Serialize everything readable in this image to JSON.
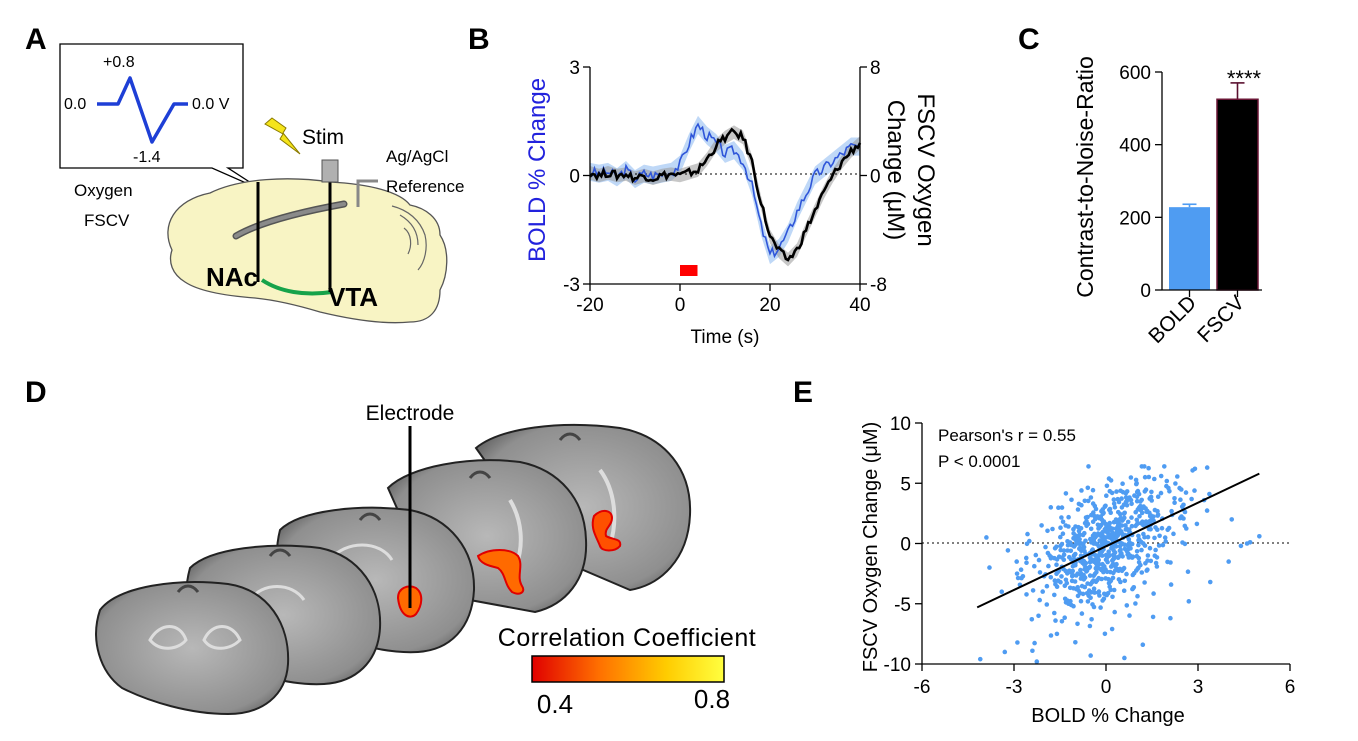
{
  "panel_labels": [
    "A",
    "B",
    "C",
    "D",
    "E"
  ],
  "panelA": {
    "waveform": {
      "peak": "+0.8",
      "start": "0.0",
      "end": "0.0 V",
      "trough": "-1.4"
    },
    "stim": "Stim",
    "reference": [
      "Ag/AgCl",
      "Reference"
    ],
    "probe": [
      "Oxygen",
      "FSCV"
    ],
    "regions": [
      "NAc",
      "VTA"
    ],
    "colors": {
      "brain": "#f8f4c4",
      "pathway": "#16a34a",
      "waveform": "#1e3fd6",
      "bolt": "#f5e41a"
    }
  },
  "chart_data": [
    {
      "panel": "B",
      "type": "line",
      "xlabel": "Time (s)",
      "ylabel_left": "BOLD % Change",
      "ylabel_right": "FSCV Oxygen Change (μM)",
      "xlim": [
        -20,
        40
      ],
      "ylim_left": [
        -3,
        3
      ],
      "ylim_right": [
        -8,
        8
      ],
      "x_ticks": [
        "-20",
        "0",
        "20",
        "40"
      ],
      "y_left_ticks": [
        "3",
        "0",
        "-3"
      ],
      "y_right_ticks": [
        "8",
        "0",
        "-8"
      ],
      "stimulus": {
        "start": 0,
        "end": 3,
        "color": "#ff0000"
      },
      "series": [
        {
          "axis": "left",
          "color": "#2f56d9",
          "band": "#8ab8f0",
          "x": [
            -20,
            -18,
            -16,
            -14,
            -12,
            -10,
            -8,
            -6,
            -4,
            -2,
            0,
            2,
            4,
            6,
            8,
            10,
            12,
            14,
            16,
            18,
            20,
            22,
            24,
            26,
            28,
            30,
            32,
            34,
            36,
            38,
            40
          ],
          "values": [
            0.1,
            0.05,
            0.1,
            -0.05,
            0.15,
            -0.1,
            0.05,
            0.0,
            0.05,
            0.1,
            0.3,
            0.9,
            1.4,
            1.1,
            0.9,
            0.6,
            0.7,
            0.4,
            -0.3,
            -1.4,
            -2.2,
            -2.0,
            -1.6,
            -1.0,
            -0.5,
            0.0,
            0.2,
            0.4,
            0.6,
            0.8,
            0.8
          ]
        },
        {
          "axis": "right",
          "color": "#000000",
          "band": "#999999",
          "x": [
            -20,
            -18,
            -16,
            -14,
            -12,
            -10,
            -8,
            -6,
            -4,
            -2,
            0,
            2,
            4,
            6,
            8,
            10,
            12,
            14,
            16,
            18,
            20,
            22,
            24,
            26,
            28,
            30,
            32,
            34,
            36,
            38,
            40
          ],
          "values": [
            0.2,
            0.0,
            0.2,
            0.0,
            0.1,
            -0.2,
            0.0,
            -0.2,
            0.0,
            0.1,
            0.0,
            0.2,
            0.4,
            1.2,
            2.2,
            2.8,
            3.2,
            2.8,
            1.0,
            -2.0,
            -4.5,
            -5.6,
            -6.2,
            -5.5,
            -4.0,
            -2.6,
            -1.2,
            0.0,
            1.0,
            1.8,
            2.4
          ]
        }
      ]
    },
    {
      "panel": "C",
      "type": "bar",
      "ylabel": "Contrast-to-Noise-Ratio",
      "categories": [
        "BOLD",
        "FSCV"
      ],
      "values": [
        228,
        525
      ],
      "errors": [
        8,
        45
      ],
      "ylim": [
        0,
        600
      ],
      "y_ticks": [
        "600",
        "400",
        "200",
        "0"
      ],
      "colors": [
        "#4f9cf2",
        "#000000"
      ],
      "significance": "****"
    },
    {
      "panel": "E",
      "type": "scatter",
      "xlabel": "BOLD % Change",
      "ylabel": "FSCV Oxygen Change (μM)",
      "xlim": [
        -6,
        6
      ],
      "ylim": [
        -10,
        10
      ],
      "x_ticks": [
        "-6",
        "-3",
        "0",
        "3",
        "6"
      ],
      "y_ticks": [
        "10",
        "5",
        "0",
        "-5",
        "-10"
      ],
      "annotations": [
        "Pearson's r = 0.55",
        "P < 0.0001"
      ],
      "fit": {
        "x": [
          -4.2,
          5.0
        ],
        "y": [
          -5.3,
          5.8
        ]
      },
      "point_color": "#4f9cf2",
      "n_points": 700,
      "points": [
        [
          -4.1,
          -9.6
        ],
        [
          -3.3,
          -9.0
        ],
        [
          -2.4,
          -8.9
        ],
        [
          -3.8,
          -2.0
        ],
        [
          -2.9,
          -2.5
        ],
        [
          -2.6,
          -1.2
        ],
        [
          -3.4,
          -4.0
        ],
        [
          -2.2,
          -6.0
        ],
        [
          -1.6,
          -7.5
        ],
        [
          -1.0,
          -8.2
        ],
        [
          -0.5,
          -9.3
        ],
        [
          0.6,
          -9.5
        ],
        [
          1.2,
          -8.4
        ],
        [
          0.2,
          -7.1
        ],
        [
          2.1,
          -6.2
        ],
        [
          2.7,
          -4.8
        ],
        [
          3.4,
          -3.2
        ],
        [
          4.0,
          -1.5
        ],
        [
          4.4,
          -0.2
        ],
        [
          4.7,
          0.1
        ],
        [
          4.1,
          2.0
        ],
        [
          3.2,
          3.6
        ],
        [
          2.4,
          4.6
        ],
        [
          1.8,
          5.6
        ],
        [
          2.9,
          6.2
        ],
        [
          3.3,
          6.3
        ],
        [
          1.0,
          5.0
        ],
        [
          0.2,
          4.2
        ],
        [
          -0.8,
          4.4
        ],
        [
          -1.8,
          3.0
        ],
        [
          -2.1,
          1.5
        ],
        [
          -2.5,
          0.2
        ],
        [
          -1.4,
          1.8
        ],
        [
          -0.6,
          2.2
        ],
        [
          0.4,
          2.6
        ],
        [
          1.4,
          1.2
        ],
        [
          0.8,
          -0.4
        ],
        [
          -0.2,
          -0.8
        ],
        [
          -1.0,
          -1.8
        ],
        [
          -1.8,
          -2.8
        ],
        [
          0.0,
          0.5
        ],
        [
          0.5,
          1.0
        ],
        [
          -0.4,
          0.3
        ],
        [
          1.7,
          2.4
        ],
        [
          2.2,
          0.8
        ],
        [
          -3.9,
          0.5
        ],
        [
          5.0,
          0.6
        ],
        [
          4.6,
          0.0
        ]
      ]
    }
  ],
  "panelD": {
    "electrode_label": "Electrode",
    "colorbar": {
      "title": "Correlation Coefficient",
      "min": "0.4",
      "max": "0.8",
      "colors": [
        "#e00000",
        "#ff7000",
        "#ffcc00",
        "#ffff40"
      ]
    }
  }
}
